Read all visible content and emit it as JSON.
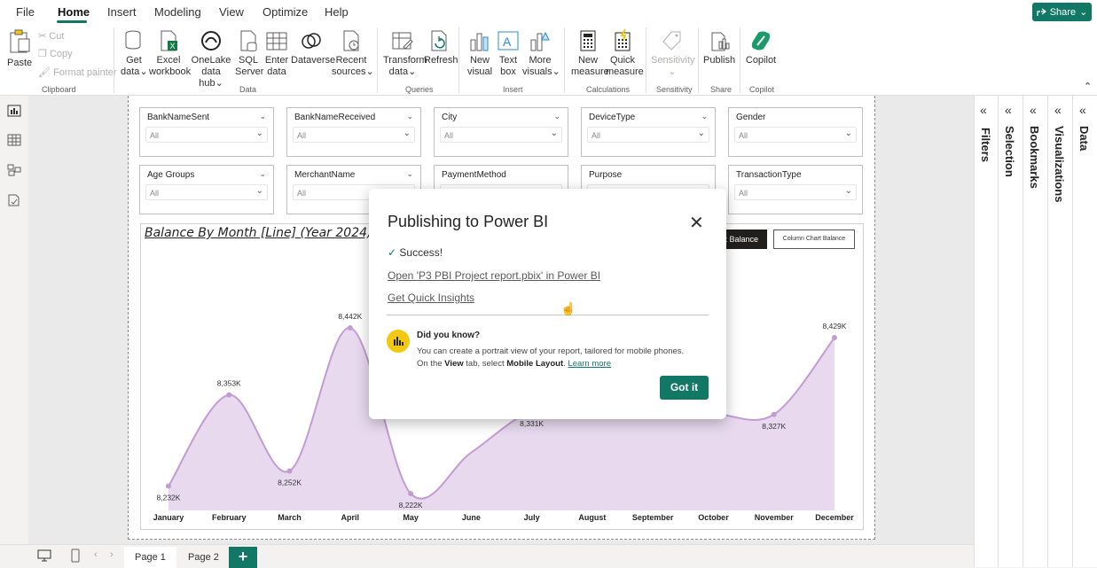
{
  "menu": {
    "tabs": [
      "File",
      "Home",
      "Insert",
      "Modeling",
      "View",
      "Optimize",
      "Help"
    ],
    "share_label": "Share",
    "accent": "#117865"
  },
  "ribbon": {
    "clipboard": {
      "paste": "Paste",
      "cut": "Cut",
      "copy": "Copy",
      "format_painter": "Format painter",
      "label": "Clipboard"
    },
    "data": {
      "get_data": [
        "Get",
        "data"
      ],
      "excel": [
        "Excel",
        "workbook"
      ],
      "onelake": [
        "OneLake",
        "data hub"
      ],
      "sql": [
        "SQL",
        "Server"
      ],
      "enter": [
        "Enter",
        "data"
      ],
      "dataverse": [
        "Dataverse",
        ""
      ],
      "recent": [
        "Recent",
        "sources"
      ],
      "label": "Data"
    },
    "queries": {
      "transform": [
        "Transform",
        "data"
      ],
      "refresh": [
        "Refresh",
        ""
      ],
      "label": "Queries"
    },
    "insert": {
      "new_visual": [
        "New",
        "visual"
      ],
      "text_box": [
        "Text",
        "box"
      ],
      "more_visuals": [
        "More",
        "visuals"
      ],
      "label": "Insert"
    },
    "calculations": {
      "new_measure": [
        "New",
        "measure"
      ],
      "quick_measure": [
        "Quick",
        "measure"
      ],
      "label": "Calculations"
    },
    "sensitivity": {
      "btn": "Sensitivity",
      "label": "Sensitivity"
    },
    "share": {
      "publish": "Publish",
      "label": "Share"
    },
    "copilot": {
      "btn": "Copilot",
      "label": "Copilot"
    }
  },
  "slicers": [
    {
      "title": "BankNameSent",
      "value": "All"
    },
    {
      "title": "BankNameReceived",
      "value": "All"
    },
    {
      "title": "City",
      "value": "All"
    },
    {
      "title": "DeviceType",
      "value": "All"
    },
    {
      "title": "Gender",
      "value": "All"
    },
    {
      "title": "Age Groups",
      "value": "All"
    },
    {
      "title": "MerchantName",
      "value": "All"
    },
    {
      "title": "PaymentMethod",
      "value": ""
    },
    {
      "title": "Purpose",
      "value": ""
    },
    {
      "title": "TransactionType",
      "value": "All"
    }
  ],
  "chart_buttons": {
    "dark": "t Balance",
    "light": "Column Chart Balance"
  },
  "chart_data": {
    "type": "area",
    "title": "Balance By Month [Line] (Year 2024)",
    "categories": [
      "January",
      "February",
      "March",
      "April",
      "May",
      "June",
      "July",
      "August",
      "September",
      "October",
      "November",
      "December"
    ],
    "values": [
      8232,
      8353,
      8252,
      8442,
      8222,
      null,
      8331,
      null,
      null,
      null,
      8327,
      8429
    ],
    "data_labels": [
      "8,232K",
      "8,353K",
      "8,252K",
      "8,442K",
      "8,222K",
      "",
      "8,331K",
      "",
      "",
      "",
      "8,327K",
      "8,429K"
    ],
    "series_color": "#c39bd3",
    "fill_color": "#e8d9ef",
    "grid": false
  },
  "panes": [
    "Filters",
    "Selection",
    "Bookmarks",
    "Visualizations",
    "Data"
  ],
  "pages": [
    "Page 1",
    "Page 2"
  ],
  "dialog": {
    "title": "Publishing to Power BI",
    "success": "Success!",
    "open_link": "Open 'P3 PBI Project report.pbix' in Power BI",
    "insights_link": "Get Quick Insights",
    "dyk_title": "Did you know?",
    "dyk_line1": "You can create a portrait view of your report, tailored for mobile phones.",
    "dyk_line2_a": "On the ",
    "dyk_line2_view": "View",
    "dyk_line2_b": " tab, select ",
    "dyk_line2_mobile": "Mobile Layout",
    "dyk_line2_c": ". ",
    "learn_more": "Learn more",
    "got_it": "Got it"
  }
}
